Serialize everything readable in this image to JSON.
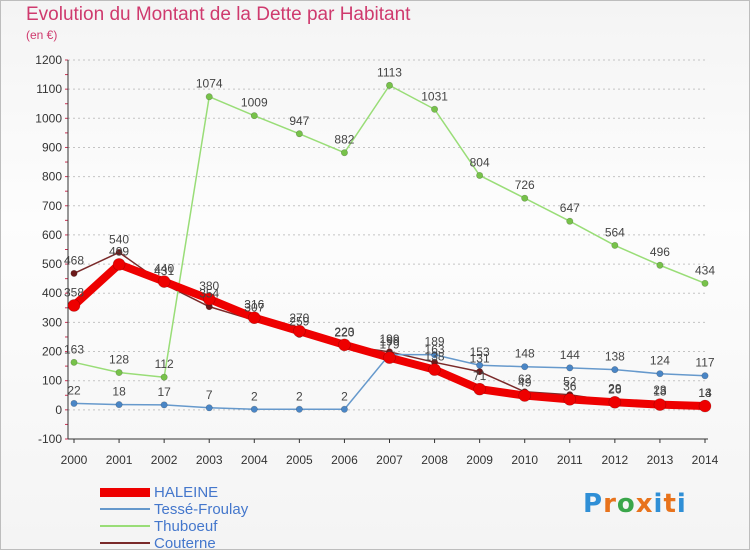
{
  "title": "Evolution du Montant de la Dette par Habitant",
  "subtitle": "(en €)",
  "logo": "Proxiti",
  "chart_data": {
    "type": "line",
    "x": [
      "2000",
      "2001",
      "2002",
      "2003",
      "2004",
      "2005",
      "2006",
      "2007",
      "2008",
      "2009",
      "2010",
      "2011",
      "2012",
      "2013",
      "2014"
    ],
    "ylim": [
      -100,
      1200
    ],
    "yticks": [
      -100,
      0,
      100,
      200,
      300,
      400,
      500,
      600,
      700,
      800,
      900,
      1000,
      1100,
      1200
    ],
    "grid": "horizontal-dashed",
    "legend_position": "bottom-left",
    "series": [
      {
        "name": "Couterne",
        "color": "#7a2a2a",
        "marker": "#6b1a1a",
        "values": [
          468,
          540,
          431,
          354,
          307,
          259,
          220,
          199,
          163,
          131,
          62,
          52,
          29,
          23,
          14
        ]
      },
      {
        "name": "Tessé-Froulay",
        "color": "#6699cc",
        "marker": "#4a86c6",
        "values": [
          22,
          18,
          17,
          7,
          2,
          2,
          2,
          190,
          189,
          153,
          148,
          144,
          138,
          124,
          117
        ]
      },
      {
        "name": "Thuboeuf",
        "color": "#99dd77",
        "marker": "#77c24a",
        "values": [
          163,
          128,
          112,
          1074,
          1009,
          947,
          882,
          1113,
          1031,
          804,
          726,
          647,
          564,
          496,
          434
        ]
      },
      {
        "name": "HALEINE",
        "color": "#ee0000",
        "marker": "#ee0000",
        "values": [
          358,
          499,
          440,
          380,
          316,
          270,
          223,
          179,
          138,
          71,
          49,
          36,
          26,
          18,
          13
        ]
      }
    ]
  }
}
